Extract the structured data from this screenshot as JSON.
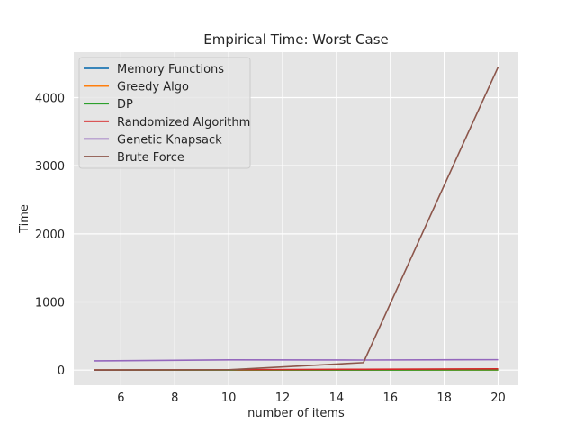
{
  "chart_data": {
    "type": "line",
    "title": "Empirical Time: Worst Case",
    "xlabel": "number of items",
    "ylabel": "Time",
    "x": [
      5,
      10,
      15,
      20
    ],
    "xlim": [
      4.25,
      20.75
    ],
    "ylim": [
      -222,
      4667
    ],
    "xticks": [
      6,
      8,
      10,
      12,
      14,
      16,
      18,
      20
    ],
    "yticks": [
      0,
      1000,
      2000,
      3000,
      4000
    ],
    "grid": true,
    "legend_position": "top-left",
    "background": "#e5e5e5",
    "series": [
      {
        "name": "Memory Functions",
        "color": "#1f77b4",
        "values": [
          0.5,
          1,
          2,
          3
        ]
      },
      {
        "name": "Greedy Algo",
        "color": "#ff7f0e",
        "values": [
          0.5,
          1,
          1.5,
          2
        ]
      },
      {
        "name": "DP",
        "color": "#2ca02c",
        "values": [
          0.5,
          1,
          2,
          3
        ]
      },
      {
        "name": "Randomized Algorithm",
        "color": "#d62728",
        "values": [
          2,
          6,
          12,
          18
        ]
      },
      {
        "name": "Genetic Knapsack",
        "color": "#9467bd",
        "values": [
          135,
          150,
          148,
          153
        ]
      },
      {
        "name": "Brute Force",
        "color": "#8c564b",
        "values": [
          0.5,
          5,
          110,
          4450
        ]
      }
    ]
  }
}
